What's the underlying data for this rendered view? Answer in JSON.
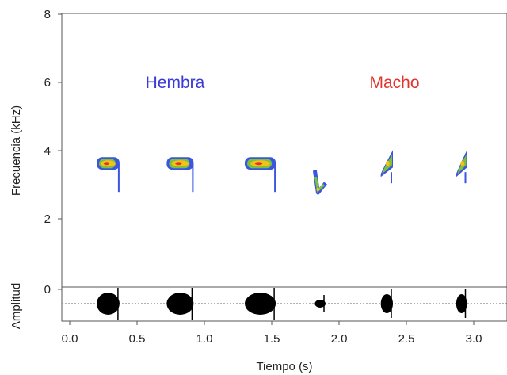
{
  "chart_data": {
    "type": "spectrogram",
    "xlabel": "Tiempo (s)",
    "ylabel_top": "Frecuencia (kHz)",
    "ylabel_bottom": "Amplitud",
    "xlim": [
      0.0,
      3.25
    ],
    "ylim_top": [
      0,
      8
    ],
    "ylim_bottom": [
      -1,
      0
    ],
    "x_ticks": [
      "0.0",
      "0.5",
      "1.0",
      "1.5",
      "2.0",
      "2.5",
      "3.0"
    ],
    "y_ticks_top": [
      "2",
      "4",
      "6",
      "8"
    ],
    "y_ticks_bottom": [
      "0"
    ],
    "annotations": [
      {
        "text": "Hembra",
        "color": "#3a3ad8",
        "x": 1.0,
        "y": 6.3
      },
      {
        "text": "Macho",
        "color": "#e0342c",
        "x": 2.45,
        "y": 6.3
      }
    ],
    "calls": [
      {
        "singer": "Hembra",
        "t_start": 0.2,
        "t_end": 0.37,
        "freq": 3.6,
        "shape": "flat"
      },
      {
        "singer": "Hembra",
        "t_start": 0.72,
        "t_end": 0.92,
        "freq": 3.6,
        "shape": "flat"
      },
      {
        "singer": "Hembra",
        "t_start": 1.3,
        "t_end": 1.53,
        "freq": 3.6,
        "shape": "flat"
      },
      {
        "singer": "Macho",
        "t_start": 1.82,
        "t_end": 1.9,
        "freq": 3.0,
        "shape": "hook"
      },
      {
        "singer": "Macho",
        "t_start": 2.31,
        "t_end": 2.4,
        "freq": 3.6,
        "shape": "rise"
      },
      {
        "singer": "Macho",
        "t_start": 2.87,
        "t_end": 2.95,
        "freq": 3.6,
        "shape": "rise"
      }
    ],
    "colors": {
      "outer": "#3a55e0",
      "mid": "#7dc03b",
      "core": "#f2c21a",
      "peak": "#e3362a",
      "wave": "#000000"
    }
  }
}
